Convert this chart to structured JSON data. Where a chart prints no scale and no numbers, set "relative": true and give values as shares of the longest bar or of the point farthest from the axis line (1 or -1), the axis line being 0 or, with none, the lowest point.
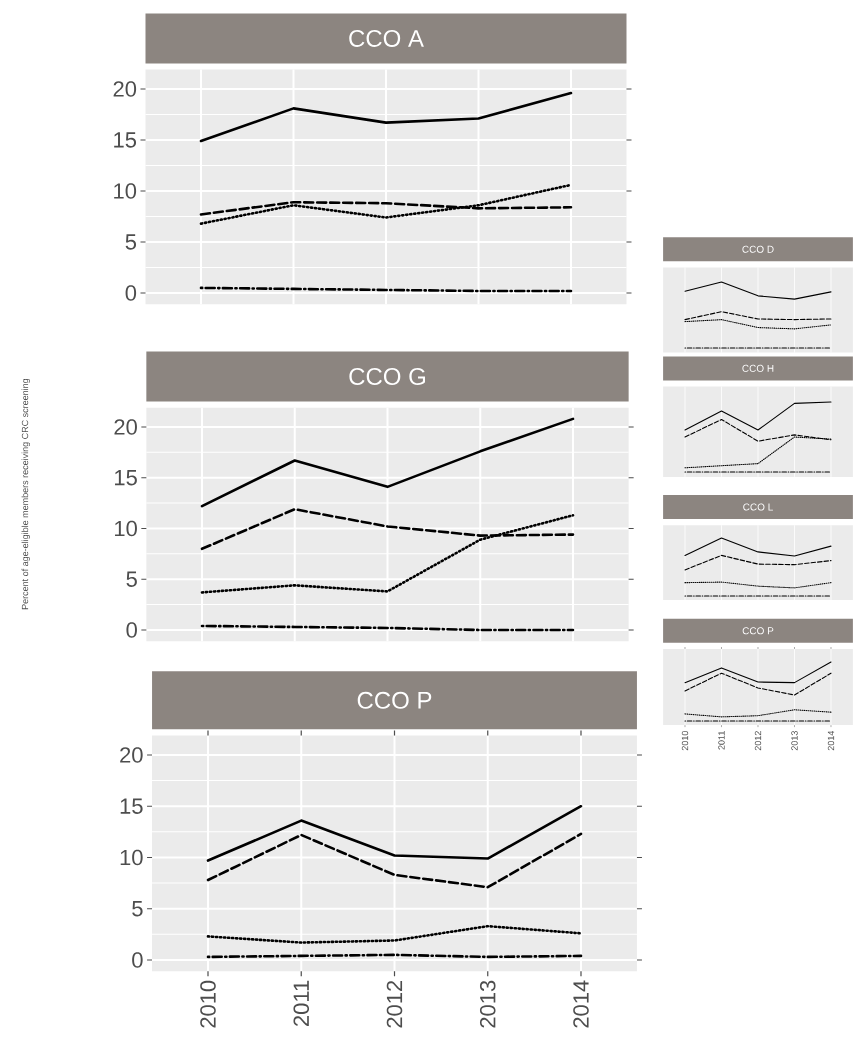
{
  "chart_data": [
    {
      "type": "line",
      "title": "CCO A",
      "categories": [
        "2010",
        "2011",
        "2012",
        "2013",
        "2014"
      ],
      "ylim": [
        -1.1,
        21.9
      ],
      "yticks": [
        0,
        5,
        10,
        15,
        20
      ],
      "grid": true,
      "tick_labels": "y",
      "series": [
        {
          "color": "#000000",
          "line_style": "solid",
          "values": [
            14.9,
            18.1,
            16.7,
            17.1,
            19.6
          ]
        },
        {
          "color": "#000000",
          "line_style": "dashed",
          "values": [
            7.7,
            8.9,
            8.8,
            8.3,
            8.4
          ]
        },
        {
          "color": "#000000",
          "line_style": "dotted",
          "values": [
            6.8,
            8.6,
            7.4,
            8.6,
            10.6
          ]
        },
        {
          "color": "#000000",
          "line_style": "dashdot",
          "values": [
            0.5,
            0.4,
            0.3,
            0.2,
            0.2
          ]
        }
      ]
    },
    {
      "type": "line",
      "title": "CCO G",
      "ylabel": "Percent of age-eligible members receiving CRC screening",
      "categories": [
        "2010",
        "2011",
        "2012",
        "2013",
        "2014"
      ],
      "ylim": [
        -1.1,
        21.9
      ],
      "yticks": [
        0,
        5,
        10,
        15,
        20
      ],
      "grid": true,
      "tick_labels": "y",
      "series": [
        {
          "color": "#000000",
          "line_style": "solid",
          "values": [
            12.2,
            16.7,
            14.1,
            17.6,
            20.8
          ]
        },
        {
          "color": "#000000",
          "line_style": "dashed",
          "values": [
            8.0,
            11.9,
            10.2,
            9.3,
            9.4
          ]
        },
        {
          "color": "#000000",
          "line_style": "dotted",
          "values": [
            3.7,
            4.4,
            3.8,
            8.9,
            11.3
          ]
        },
        {
          "color": "#000000",
          "line_style": "dashdot",
          "values": [
            0.4,
            0.3,
            0.2,
            0.0,
            0.0
          ]
        }
      ]
    },
    {
      "type": "line",
      "title": "CCO P",
      "categories": [
        "2010",
        "2011",
        "2012",
        "2013",
        "2014"
      ],
      "ylim": [
        -1.1,
        21.9
      ],
      "yticks": [
        0,
        5,
        10,
        15,
        20
      ],
      "grid": true,
      "series": [
        {
          "color": "#000000",
          "line_style": "solid",
          "values": [
            9.7,
            13.6,
            10.2,
            9.9,
            15.0
          ]
        },
        {
          "color": "#000000",
          "line_style": "dashed",
          "values": [
            7.8,
            12.2,
            8.3,
            7.1,
            12.3
          ]
        },
        {
          "color": "#000000",
          "line_style": "dotted",
          "values": [
            2.3,
            1.7,
            1.9,
            3.3,
            2.6
          ]
        },
        {
          "color": "#000000",
          "line_style": "dashdot",
          "values": [
            0.3,
            0.4,
            0.5,
            0.3,
            0.4
          ]
        }
      ]
    },
    {
      "type": "line",
      "title": "CCO D",
      "relative": true,
      "categories": [
        "2010",
        "2011",
        "2012",
        "2013",
        "2014"
      ],
      "grid": true,
      "tick_labels": false,
      "series": [
        {
          "color": "#000000",
          "line_style": "solid",
          "values": [
            0.86,
            1.0,
            0.79,
            0.74,
            0.85
          ]
        },
        {
          "color": "#000000",
          "line_style": "dashed",
          "values": [
            0.43,
            0.55,
            0.44,
            0.43,
            0.44
          ]
        },
        {
          "color": "#000000",
          "line_style": "dotted",
          "values": [
            0.4,
            0.43,
            0.31,
            0.29,
            0.35
          ]
        },
        {
          "color": "#000000",
          "line_style": "dashdot",
          "values": [
            0.0,
            0.0,
            0.0,
            0.0,
            0.0
          ]
        }
      ]
    },
    {
      "type": "line",
      "title": "CCO H",
      "relative": true,
      "categories": [
        "2010",
        "2011",
        "2012",
        "2013",
        "2014"
      ],
      "grid": true,
      "tick_labels": false,
      "series": [
        {
          "color": "#000000",
          "line_style": "solid",
          "values": [
            0.6,
            0.87,
            0.6,
            0.98,
            1.0
          ]
        },
        {
          "color": "#000000",
          "line_style": "dashed",
          "values": [
            0.5,
            0.75,
            0.44,
            0.53,
            0.46
          ]
        },
        {
          "color": "#000000",
          "line_style": "dotted",
          "values": [
            0.06,
            0.09,
            0.12,
            0.5,
            0.47
          ]
        },
        {
          "color": "#000000",
          "line_style": "dashdot",
          "values": [
            0.0,
            0.0,
            0.0,
            0.0,
            0.0
          ]
        }
      ]
    },
    {
      "type": "line",
      "title": "CCO L",
      "relative": true,
      "categories": [
        "2010",
        "2011",
        "2012",
        "2013",
        "2014"
      ],
      "grid": true,
      "tick_labels": false,
      "series": [
        {
          "color": "#000000",
          "line_style": "solid",
          "values": [
            0.7,
            1.0,
            0.76,
            0.69,
            0.86
          ]
        },
        {
          "color": "#000000",
          "line_style": "dashed",
          "values": [
            0.45,
            0.7,
            0.55,
            0.54,
            0.61
          ]
        },
        {
          "color": "#000000",
          "line_style": "dotted",
          "values": [
            0.23,
            0.24,
            0.17,
            0.14,
            0.23
          ]
        },
        {
          "color": "#000000",
          "line_style": "dashdot",
          "values": [
            0.0,
            0.0,
            0.0,
            0.0,
            0.0
          ]
        }
      ]
    },
    {
      "type": "line",
      "title": "CCO P",
      "relative": true,
      "categories": [
        "2010",
        "2011",
        "2012",
        "2013",
        "2014"
      ],
      "grid": true,
      "tick_labels": "x",
      "series": [
        {
          "color": "#000000",
          "line_style": "solid",
          "values": [
            0.65,
            0.9,
            0.66,
            0.65,
            1.0
          ]
        },
        {
          "color": "#000000",
          "line_style": "dashed",
          "values": [
            0.51,
            0.81,
            0.56,
            0.44,
            0.81
          ]
        },
        {
          "color": "#000000",
          "line_style": "dotted",
          "values": [
            0.12,
            0.07,
            0.09,
            0.19,
            0.15
          ]
        },
        {
          "color": "#000000",
          "line_style": "dashdot",
          "values": [
            0.0,
            0.0,
            0.0,
            0.0,
            0.0
          ]
        }
      ]
    }
  ]
}
